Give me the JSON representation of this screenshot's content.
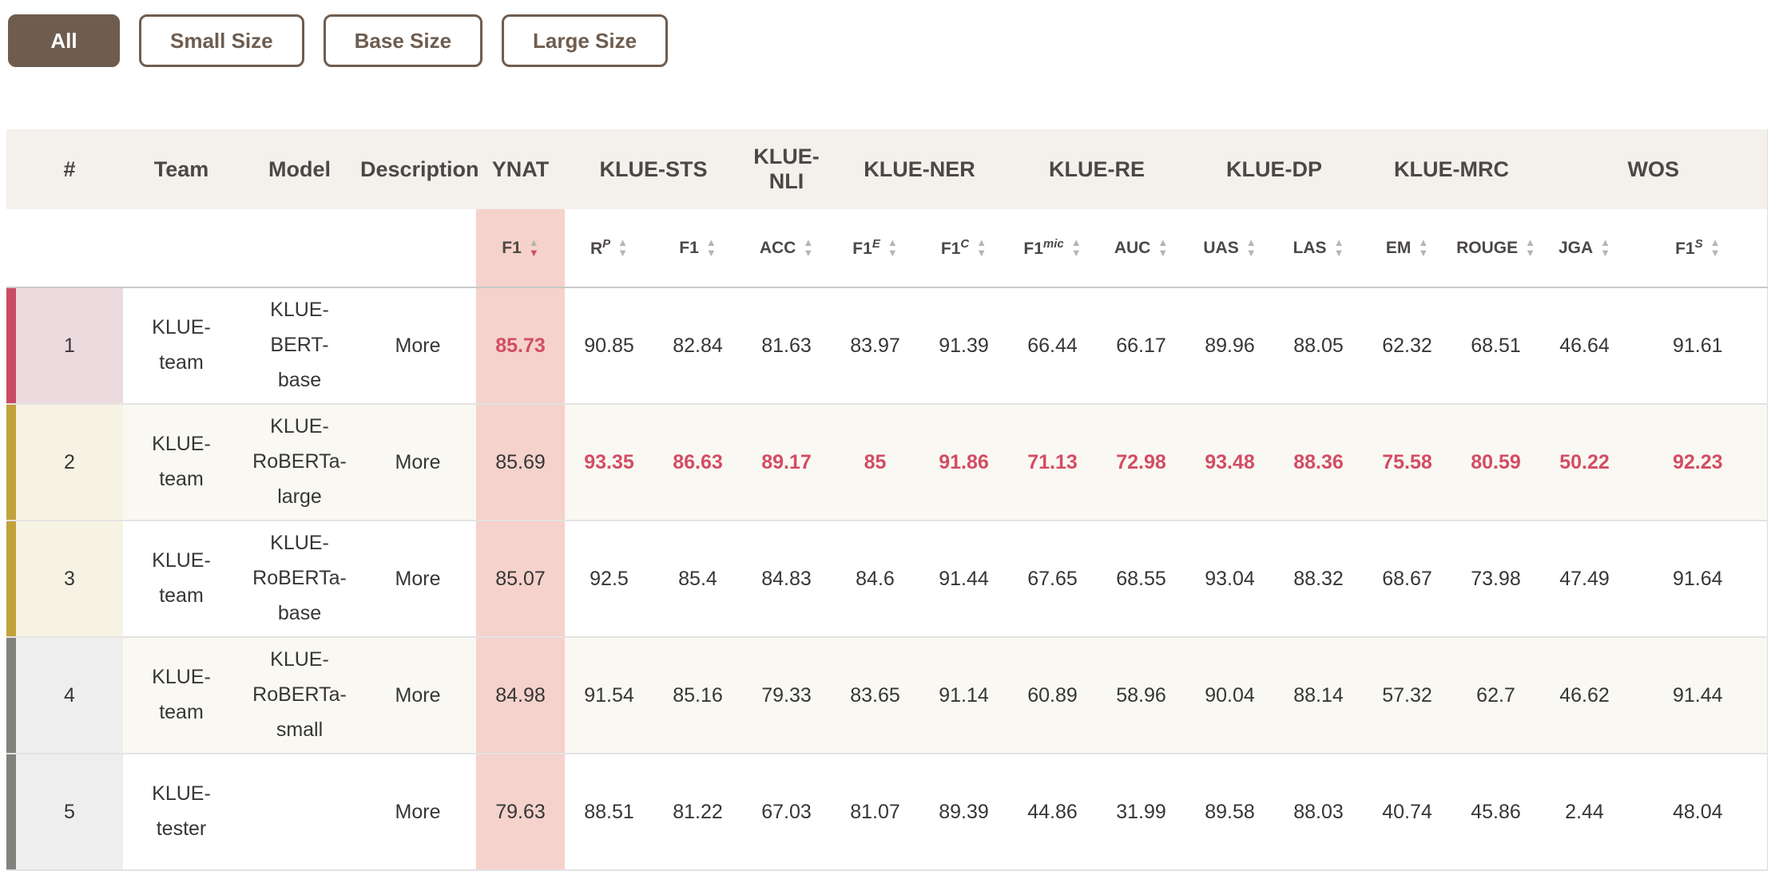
{
  "colors": {
    "accent_red": "#d24d64",
    "button_brown": "#6e5d4f",
    "header_bg": "#f4f0ec",
    "ynat_column_pink": "#f5d2cb",
    "rank1_bar": "#c94b62",
    "rank_gold_bar": "#c2a23c",
    "rank_gray_bar": "#82817e"
  },
  "filters": {
    "buttons": [
      {
        "label": "All",
        "active": true
      },
      {
        "label": "Small Size",
        "active": false
      },
      {
        "label": "Base Size",
        "active": false
      },
      {
        "label": "Large Size",
        "active": false
      }
    ]
  },
  "table": {
    "groups": [
      {
        "label": "#",
        "span": 1
      },
      {
        "label": "Team",
        "span": 1
      },
      {
        "label": "Model",
        "span": 1
      },
      {
        "label": "Description",
        "span": 1
      },
      {
        "label": "YNAT",
        "span": 1
      },
      {
        "label": "KLUE-STS",
        "span": 2
      },
      {
        "label": "KLUE-NLI",
        "span": 1
      },
      {
        "label": "KLUE-NER",
        "span": 2
      },
      {
        "label": "KLUE-RE",
        "span": 2
      },
      {
        "label": "KLUE-DP",
        "span": 2
      },
      {
        "label": "KLUE-MRC",
        "span": 2
      },
      {
        "label": "WOS",
        "span": 2
      }
    ],
    "metrics": [
      {
        "label": "F1",
        "sup": "",
        "sort": "desc",
        "highlighted": true
      },
      {
        "label": "R",
        "sup": "P"
      },
      {
        "label": "F1",
        "sup": ""
      },
      {
        "label": "ACC",
        "sup": ""
      },
      {
        "label": "F1",
        "sup": "E"
      },
      {
        "label": "F1",
        "sup": "C"
      },
      {
        "label": "F1",
        "sup": "mic"
      },
      {
        "label": "AUC",
        "sup": ""
      },
      {
        "label": "UAS",
        "sup": ""
      },
      {
        "label": "LAS",
        "sup": ""
      },
      {
        "label": "EM",
        "sup": ""
      },
      {
        "label": "ROUGE",
        "sup": ""
      },
      {
        "label": "JGA",
        "sup": ""
      },
      {
        "label": "F1",
        "sup": "S"
      }
    ],
    "rows": [
      {
        "rank": "1",
        "team": "KLUE-team",
        "model": "KLUE-BERT-base",
        "description": "More",
        "medal": "crimson",
        "values": [
          "85.73",
          "90.85",
          "82.84",
          "81.63",
          "83.97",
          "91.39",
          "66.44",
          "66.17",
          "89.96",
          "88.05",
          "62.32",
          "68.51",
          "46.64",
          "91.61"
        ],
        "red": [
          0
        ]
      },
      {
        "rank": "2",
        "team": "KLUE-team",
        "model": "KLUE-RoBERTa-large",
        "description": "More",
        "medal": "gold",
        "values": [
          "85.69",
          "93.35",
          "86.63",
          "89.17",
          "85",
          "91.86",
          "71.13",
          "72.98",
          "93.48",
          "88.36",
          "75.58",
          "80.59",
          "50.22",
          "92.23"
        ],
        "red": [
          1,
          2,
          3,
          4,
          5,
          6,
          7,
          8,
          9,
          10,
          11,
          12,
          13
        ]
      },
      {
        "rank": "3",
        "team": "KLUE-team",
        "model": "KLUE-RoBERTa-base",
        "description": "More",
        "medal": "gold",
        "values": [
          "85.07",
          "92.5",
          "85.4",
          "84.83",
          "84.6",
          "91.44",
          "67.65",
          "68.55",
          "93.04",
          "88.32",
          "68.67",
          "73.98",
          "47.49",
          "91.64"
        ],
        "red": []
      },
      {
        "rank": "4",
        "team": "KLUE-team",
        "model": "KLUE-RoBERTa-small",
        "description": "More",
        "medal": "gray",
        "values": [
          "84.98",
          "91.54",
          "85.16",
          "79.33",
          "83.65",
          "91.14",
          "60.89",
          "58.96",
          "90.04",
          "88.14",
          "57.32",
          "62.7",
          "46.62",
          "91.44"
        ],
        "red": []
      },
      {
        "rank": "5",
        "team": "KLUE-tester",
        "model": "",
        "description": "More",
        "medal": "gray",
        "values": [
          "79.63",
          "88.51",
          "81.22",
          "67.03",
          "81.07",
          "89.39",
          "44.86",
          "31.99",
          "89.58",
          "88.03",
          "40.74",
          "45.86",
          "2.44",
          "48.04"
        ],
        "red": []
      }
    ]
  }
}
